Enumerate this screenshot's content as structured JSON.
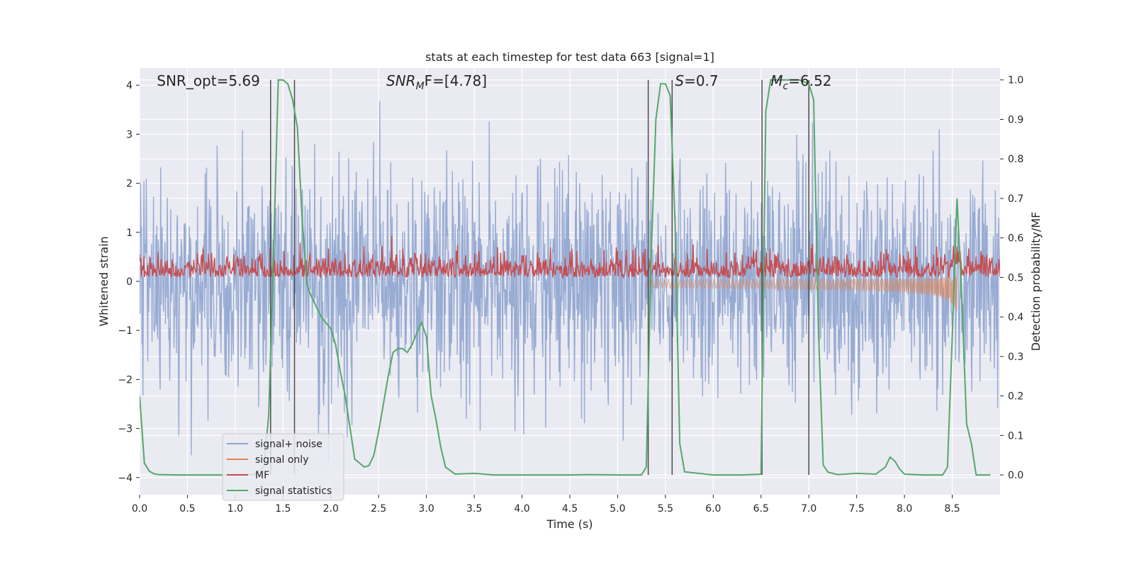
{
  "chart_data": {
    "type": "line",
    "title": "stats at each timestep for test data 663 [signal=1]",
    "xlabel": "Time (s)",
    "ylabel_left": "Whitened strain",
    "ylabel_right": "Detection probability/MF",
    "xlim": [
      0.0,
      9.0
    ],
    "ylim_left": [
      -4.35,
      4.35
    ],
    "ylim_right": [
      -0.05,
      1.03
    ],
    "x_ticks": [
      "0.0",
      "0.5",
      "1.0",
      "1.5",
      "2.0",
      "2.5",
      "3.0",
      "3.5",
      "4.0",
      "4.5",
      "5.0",
      "5.5",
      "6.0",
      "6.5",
      "7.0",
      "7.5",
      "8.0",
      "8.5"
    ],
    "x_tick_values": [
      0.0,
      0.5,
      1.0,
      1.5,
      2.0,
      2.5,
      3.0,
      3.5,
      4.0,
      4.5,
      5.0,
      5.5,
      6.0,
      6.5,
      7.0,
      7.5,
      8.0,
      8.5
    ],
    "y_left_ticks": [
      "4",
      "3",
      "2",
      "1",
      "0",
      "−1",
      "−2",
      "−3",
      "−4"
    ],
    "y_left_tick_values": [
      4,
      3,
      2,
      1,
      0,
      -1,
      -2,
      -3,
      -4
    ],
    "y_right_ticks": [
      "1.0",
      "0.9",
      "0.8",
      "0.7",
      "0.6",
      "0.5",
      "0.4",
      "0.3",
      "0.2",
      "0.1",
      "0.0"
    ],
    "y_right_tick_values": [
      1.0,
      0.9,
      0.8,
      0.7,
      0.6,
      0.5,
      0.4,
      0.3,
      0.2,
      0.1,
      0.0
    ],
    "annotations": [
      {
        "prefix": "SNR_opt",
        "italic_prefix": false,
        "sub": "",
        "suffix": "=5.69",
        "x": 0.18
      },
      {
        "prefix": "SNR",
        "italic_prefix": true,
        "sub": "M",
        "suffix": "F=[4.78]",
        "x": 2.58
      },
      {
        "prefix": "S",
        "italic_prefix": true,
        "sub": "",
        "suffix": "=0.7",
        "x": 5.6
      },
      {
        "prefix": "M",
        "italic_prefix": true,
        "sub": "c",
        "suffix": "=6.52",
        "x": 6.6
      }
    ],
    "detection_windows": [
      [
        1.37,
        1.62
      ],
      [
        5.32,
        5.57
      ],
      [
        6.51,
        7.0
      ]
    ],
    "grid": true,
    "legend_position": "lower-left",
    "series": [
      {
        "name": "signal+ noise",
        "color": "#92a8d1",
        "axis": "left",
        "kind": "noise",
        "approx_envelope": [
          -2.2,
          2.3
        ],
        "approx_peaks": [
          -3.9,
          3.9
        ]
      },
      {
        "name": "signal only",
        "color": "#dd8452",
        "axis": "left",
        "kind": "chirp",
        "start": 5.3,
        "end": 8.55
      },
      {
        "name": "MF",
        "color": "#c44e52",
        "axis": "right",
        "kind": "mf",
        "approx_mean": 0.52,
        "approx_range": [
          0.5,
          0.6
        ]
      },
      {
        "name": "signal statistics",
        "color": "#55a868",
        "axis": "right",
        "kind": "line",
        "x": [
          0.0,
          0.05,
          0.1,
          0.15,
          0.2,
          0.4,
          0.6,
          0.8,
          1.0,
          1.2,
          1.3,
          1.35,
          1.4,
          1.45,
          1.5,
          1.55,
          1.6,
          1.65,
          1.7,
          1.75,
          1.8,
          1.9,
          2.0,
          2.05,
          2.1,
          2.15,
          2.2,
          2.25,
          2.3,
          2.35,
          2.4,
          2.45,
          2.5,
          2.55,
          2.6,
          2.65,
          2.7,
          2.75,
          2.8,
          2.85,
          2.9,
          2.95,
          3.0,
          3.05,
          3.1,
          3.15,
          3.2,
          3.3,
          3.5,
          3.7,
          4.0,
          4.5,
          4.7,
          5.0,
          5.25,
          5.3,
          5.35,
          5.4,
          5.45,
          5.5,
          5.55,
          5.6,
          5.65,
          5.7,
          6.0,
          6.3,
          6.5,
          6.52,
          6.55,
          6.6,
          6.7,
          6.8,
          6.9,
          7.0,
          7.05,
          7.1,
          7.15,
          7.2,
          7.3,
          7.5,
          7.7,
          7.8,
          7.85,
          7.9,
          7.95,
          8.0,
          8.2,
          8.4,
          8.45,
          8.5,
          8.55,
          8.6,
          8.65,
          8.7,
          8.75,
          8.8,
          8.9
        ],
        "y": [
          0.2,
          0.03,
          0.01,
          0.003,
          0.001,
          0.0,
          0.0,
          0.0,
          0.0,
          0.001,
          0.02,
          0.15,
          0.55,
          1.0,
          1.0,
          0.99,
          0.95,
          0.88,
          0.65,
          0.48,
          0.45,
          0.4,
          0.37,
          0.33,
          0.26,
          0.2,
          0.12,
          0.04,
          0.03,
          0.02,
          0.024,
          0.05,
          0.11,
          0.18,
          0.25,
          0.31,
          0.32,
          0.32,
          0.31,
          0.33,
          0.36,
          0.385,
          0.35,
          0.2,
          0.14,
          0.07,
          0.02,
          0.002,
          0.004,
          0.0,
          0.0,
          0.0,
          0.001,
          0.0,
          0.0,
          0.02,
          0.55,
          0.9,
          0.99,
          0.99,
          0.96,
          0.64,
          0.08,
          0.008,
          0.0,
          0.0,
          0.002,
          0.4,
          0.92,
          1.0,
          1.0,
          1.0,
          1.0,
          0.99,
          0.95,
          0.37,
          0.025,
          0.007,
          0.001,
          0.004,
          0.002,
          0.02,
          0.045,
          0.035,
          0.015,
          0.002,
          0.0,
          0.0,
          0.02,
          0.35,
          0.7,
          0.45,
          0.13,
          0.08,
          0.0,
          0.0,
          0.0
        ]
      }
    ]
  }
}
